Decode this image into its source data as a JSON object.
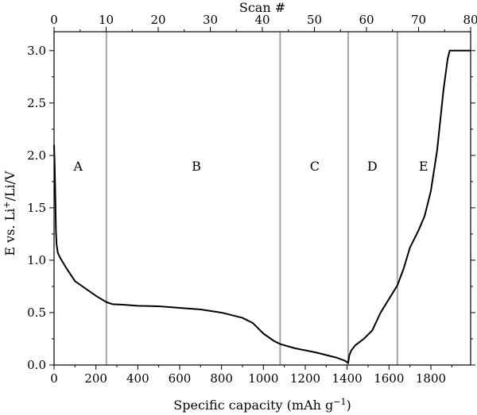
{
  "chart_data": {
    "type": "line",
    "xlabel": "Specific capacity (mAh g",
    "xlabel_sup": "−1",
    "xlabel_end": ")",
    "ylabel_pre": "E vs. Li",
    "ylabel_sup": "+",
    "ylabel_post": "/Li/V",
    "top_xlabel": "Scan #",
    "xlim": [
      0,
      1990
    ],
    "ylim": [
      0,
      3.18
    ],
    "top_xlim": [
      0,
      80
    ],
    "x_ticks": [
      0,
      200,
      400,
      600,
      800,
      1000,
      1200,
      1400,
      1600,
      1800
    ],
    "y_ticks": [
      0.0,
      0.5,
      1.0,
      1.5,
      2.0,
      2.5,
      3.0
    ],
    "y_tick_labels": [
      "0.0",
      "0.5",
      "1.0",
      "1.5",
      "2.0",
      "2.5",
      "3.0"
    ],
    "top_ticks": [
      0,
      10,
      20,
      30,
      40,
      50,
      60,
      70,
      80
    ],
    "region_boundaries": [
      250,
      1080,
      1405,
      1640
    ],
    "regions": [
      {
        "label": "A",
        "x": 115,
        "y": 1.9
      },
      {
        "label": "B",
        "x": 680,
        "y": 1.9
      },
      {
        "label": "C",
        "x": 1245,
        "y": 1.9
      },
      {
        "label": "D",
        "x": 1520,
        "y": 1.9
      },
      {
        "label": "E",
        "x": 1765,
        "y": 1.9
      }
    ],
    "series": [
      {
        "x": [
          0,
          3,
          5,
          7,
          9,
          12,
          18,
          30,
          60,
          100,
          150,
          200,
          250,
          280,
          330,
          400,
          500,
          600,
          700,
          800,
          900,
          950,
          1000,
          1050,
          1080,
          1150,
          1250,
          1350,
          1390,
          1405,
          1410,
          1420,
          1440,
          1480,
          1520,
          1560,
          1600,
          1640,
          1670,
          1700,
          1740,
          1770,
          1800,
          1830,
          1860,
          1880,
          1890,
          1990
        ],
        "y": [
          2.1,
          1.9,
          1.72,
          1.5,
          1.28,
          1.15,
          1.07,
          1.02,
          0.92,
          0.8,
          0.73,
          0.66,
          0.6,
          0.58,
          0.575,
          0.565,
          0.56,
          0.545,
          0.53,
          0.5,
          0.45,
          0.4,
          0.3,
          0.23,
          0.2,
          0.16,
          0.12,
          0.07,
          0.04,
          0.02,
          0.09,
          0.14,
          0.19,
          0.25,
          0.33,
          0.5,
          0.63,
          0.76,
          0.92,
          1.12,
          1.28,
          1.42,
          1.66,
          2.05,
          2.62,
          2.92,
          3.0,
          3.0
        ]
      }
    ]
  }
}
